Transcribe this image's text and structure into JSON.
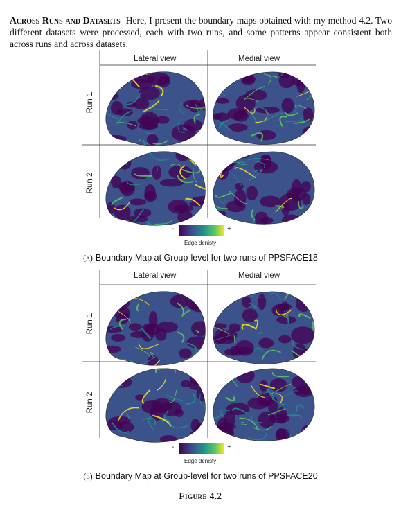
{
  "paragraph": {
    "heading": "Across Runs and Datasets",
    "body": "Here, I present the boundary maps obtained with my method 4.2. Two different datasets were processed, each with two runs, and some patterns appear consistent both across runs and across datasets."
  },
  "colors": {
    "viridis": [
      "#440154",
      "#3b528b",
      "#21918c",
      "#5ec962",
      "#fde725"
    ]
  },
  "figure_label": "Figure 4.2",
  "panels": [
    {
      "view_headers": [
        "Lateral view",
        "Medial view"
      ],
      "row_labels": [
        "Run 1",
        "Run 2"
      ],
      "colorbar": {
        "min_label": "-",
        "max_label": "+",
        "label": "Edge denisty"
      },
      "caption_letter": "(a)",
      "caption_text": "Boundary Map at Group-level for two runs of PPSFACE18"
    },
    {
      "view_headers": [
        "Lateral view",
        "Medial view"
      ],
      "row_labels": [
        "Run 1",
        "Run 2"
      ],
      "colorbar": {
        "min_label": "-",
        "max_label": "+",
        "label": "Edge denisty"
      },
      "caption_letter": "(b)",
      "caption_text": "Boundary Map at Group-level for two runs of PPSFACE20"
    }
  ]
}
